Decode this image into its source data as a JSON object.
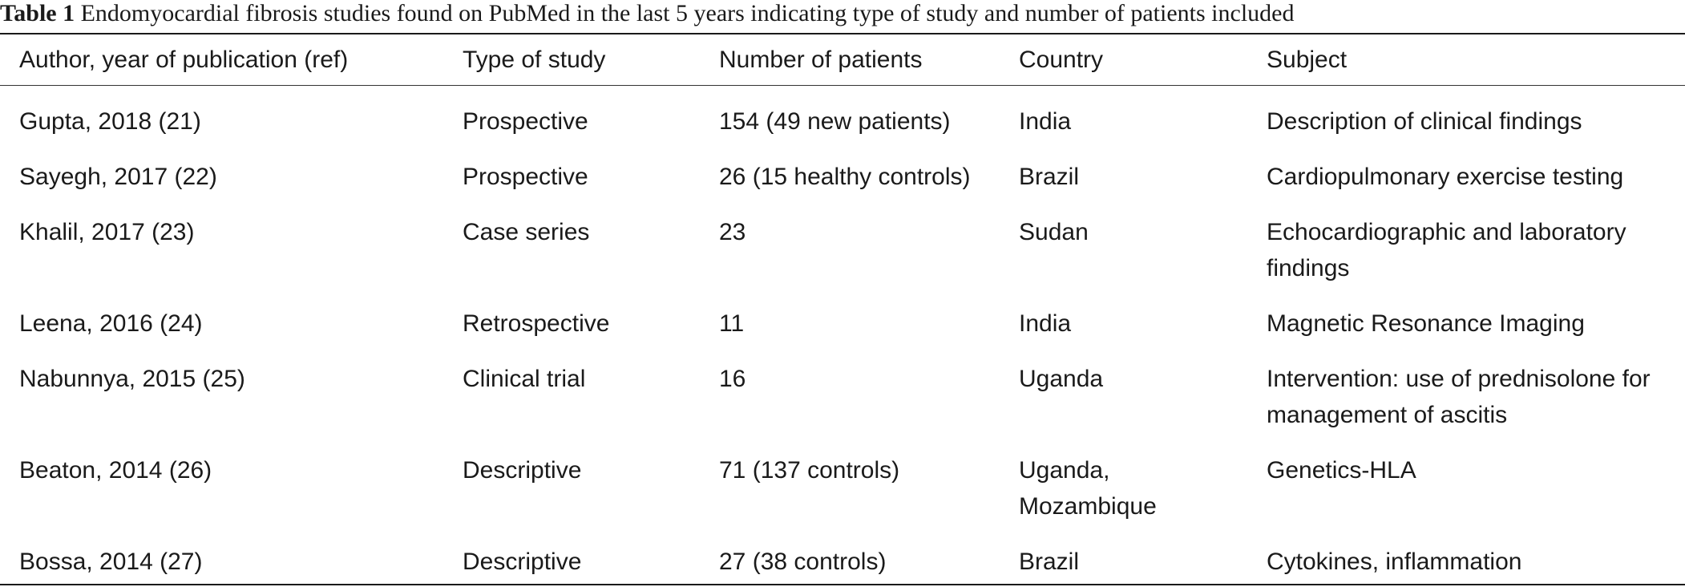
{
  "caption": {
    "label": "Table 1",
    "text": "Endomyocardial fibrosis studies found on PubMed in the last 5 years indicating type of study and number of patients included"
  },
  "table": {
    "headers": [
      "Author, year of publication (ref)",
      "Type of study",
      "Number of patients",
      "Country",
      "Subject"
    ],
    "rows": [
      [
        "Gupta, 2018 (21)",
        "Prospective",
        "154 (49 new patients)",
        "India",
        "Description of clinical findings"
      ],
      [
        "Sayegh, 2017 (22)",
        "Prospective",
        "26 (15 healthy controls)",
        "Brazil",
        "Cardiopulmonary exercise testing"
      ],
      [
        "Khalil, 2017 (23)",
        "Case series",
        "23",
        "Sudan",
        "Echocardiographic and laboratory findings"
      ],
      [
        "Leena, 2016 (24)",
        "Retrospective",
        "11",
        "India",
        "Magnetic Resonance Imaging"
      ],
      [
        "Nabunnya, 2015 (25)",
        "Clinical trial",
        "16",
        "Uganda",
        "Intervention: use of prednisolone for management of ascitis"
      ],
      [
        "Beaton, 2014 (26)",
        "Descriptive",
        "71 (137 controls)",
        "Uganda, Mozambique",
        "Genetics-HLA"
      ],
      [
        "Bossa, 2014 (27)",
        "Descriptive",
        "27 (38 controls)",
        "Brazil",
        "Cytokines, inflammation"
      ]
    ]
  }
}
